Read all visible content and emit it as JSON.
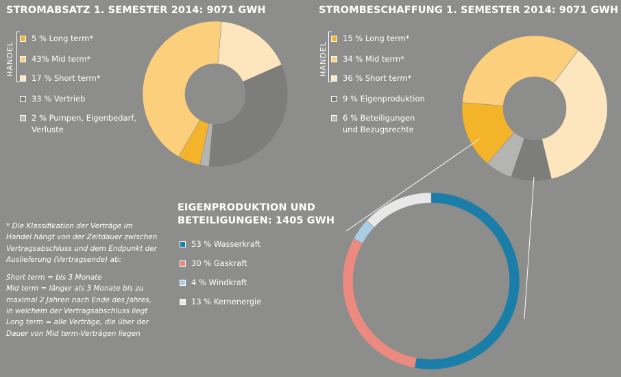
{
  "chart_data": [
    {
      "type": "pie",
      "title": "STROMABSATZ 1. SEMESTER 2014: 9071 GWH",
      "group_label": "HANDEL",
      "slices": [
        {
          "label": "5 % Long term*",
          "value": 5,
          "color": "#f4b42a"
        },
        {
          "label": "43% Mid term*",
          "value": 43,
          "color": "#fbcf7c"
        },
        {
          "label": "17 % Short term*",
          "value": 17,
          "color": "#fde6bd"
        },
        {
          "label": "33 % Vertrieb",
          "value": 33,
          "color": "#7d7d7b"
        },
        {
          "label": "2 % Pumpen, Eigenbedarf, Verluste",
          "label_lines": [
            "2 % Pumpen, Eigenbedarf,",
            "Verluste"
          ],
          "value": 2,
          "color": "#b4b4b2"
        }
      ]
    },
    {
      "type": "pie",
      "title": "STROMBESCHAFFUNG 1. SEMESTER 2014: 9071 GWH",
      "group_label": "HANDEL",
      "slices": [
        {
          "label": "15 % Long term*",
          "value": 15,
          "color": "#f4b42a"
        },
        {
          "label": "34 % Mid term*",
          "value": 34,
          "color": "#fbcf7c"
        },
        {
          "label": "36 % Short term*",
          "value": 36,
          "color": "#fde6bd"
        },
        {
          "label": "9 % Eigenproduktion",
          "value": 9,
          "color": "#7d7d7b"
        },
        {
          "label": "6 % Beteiligungen und Bezugsrechte",
          "label_lines": [
            "6 % Beteiligungen",
            "und Bezugsrechte"
          ],
          "value": 6,
          "color": "#b4b4b2"
        }
      ]
    },
    {
      "type": "pie",
      "title": "EIGENPRODUKTION UND BETEILIGUNGEN: 1405 GWH",
      "title_lines": [
        "EIGENPRODUKTION UND",
        "BETEILIGUNGEN: 1405 GWH"
      ],
      "slices": [
        {
          "label": "53 % Wasserkraft",
          "value": 53,
          "color": "#1a7ea8"
        },
        {
          "label": "30 % Gaskraft",
          "value": 30,
          "color": "#ec8a80"
        },
        {
          "label": "4 % Windkraft",
          "value": 4,
          "color": "#a9cde4"
        },
        {
          "label": "13 % Kernenergie",
          "value": 13,
          "color": "#e8e8e8"
        }
      ]
    }
  ],
  "footnote": {
    "intro": "* Die Klassifikation der Verträge im Handel hängt von der Zeitdauer zwischen Vertragsabschluss und dem Endpunkt der Auslieferung (Vertragsende) ab:",
    "lines": [
      "Short term = bis 3 Monate",
      "Mid term = länger als 3 Monate bis zu maximal 2 Jahren nach Ende des Jahres, in welchem der Vertragsabschluss liegt",
      "Long term = alle Verträge, die über der Dauer von Mid term-Verträgen liegen"
    ]
  }
}
